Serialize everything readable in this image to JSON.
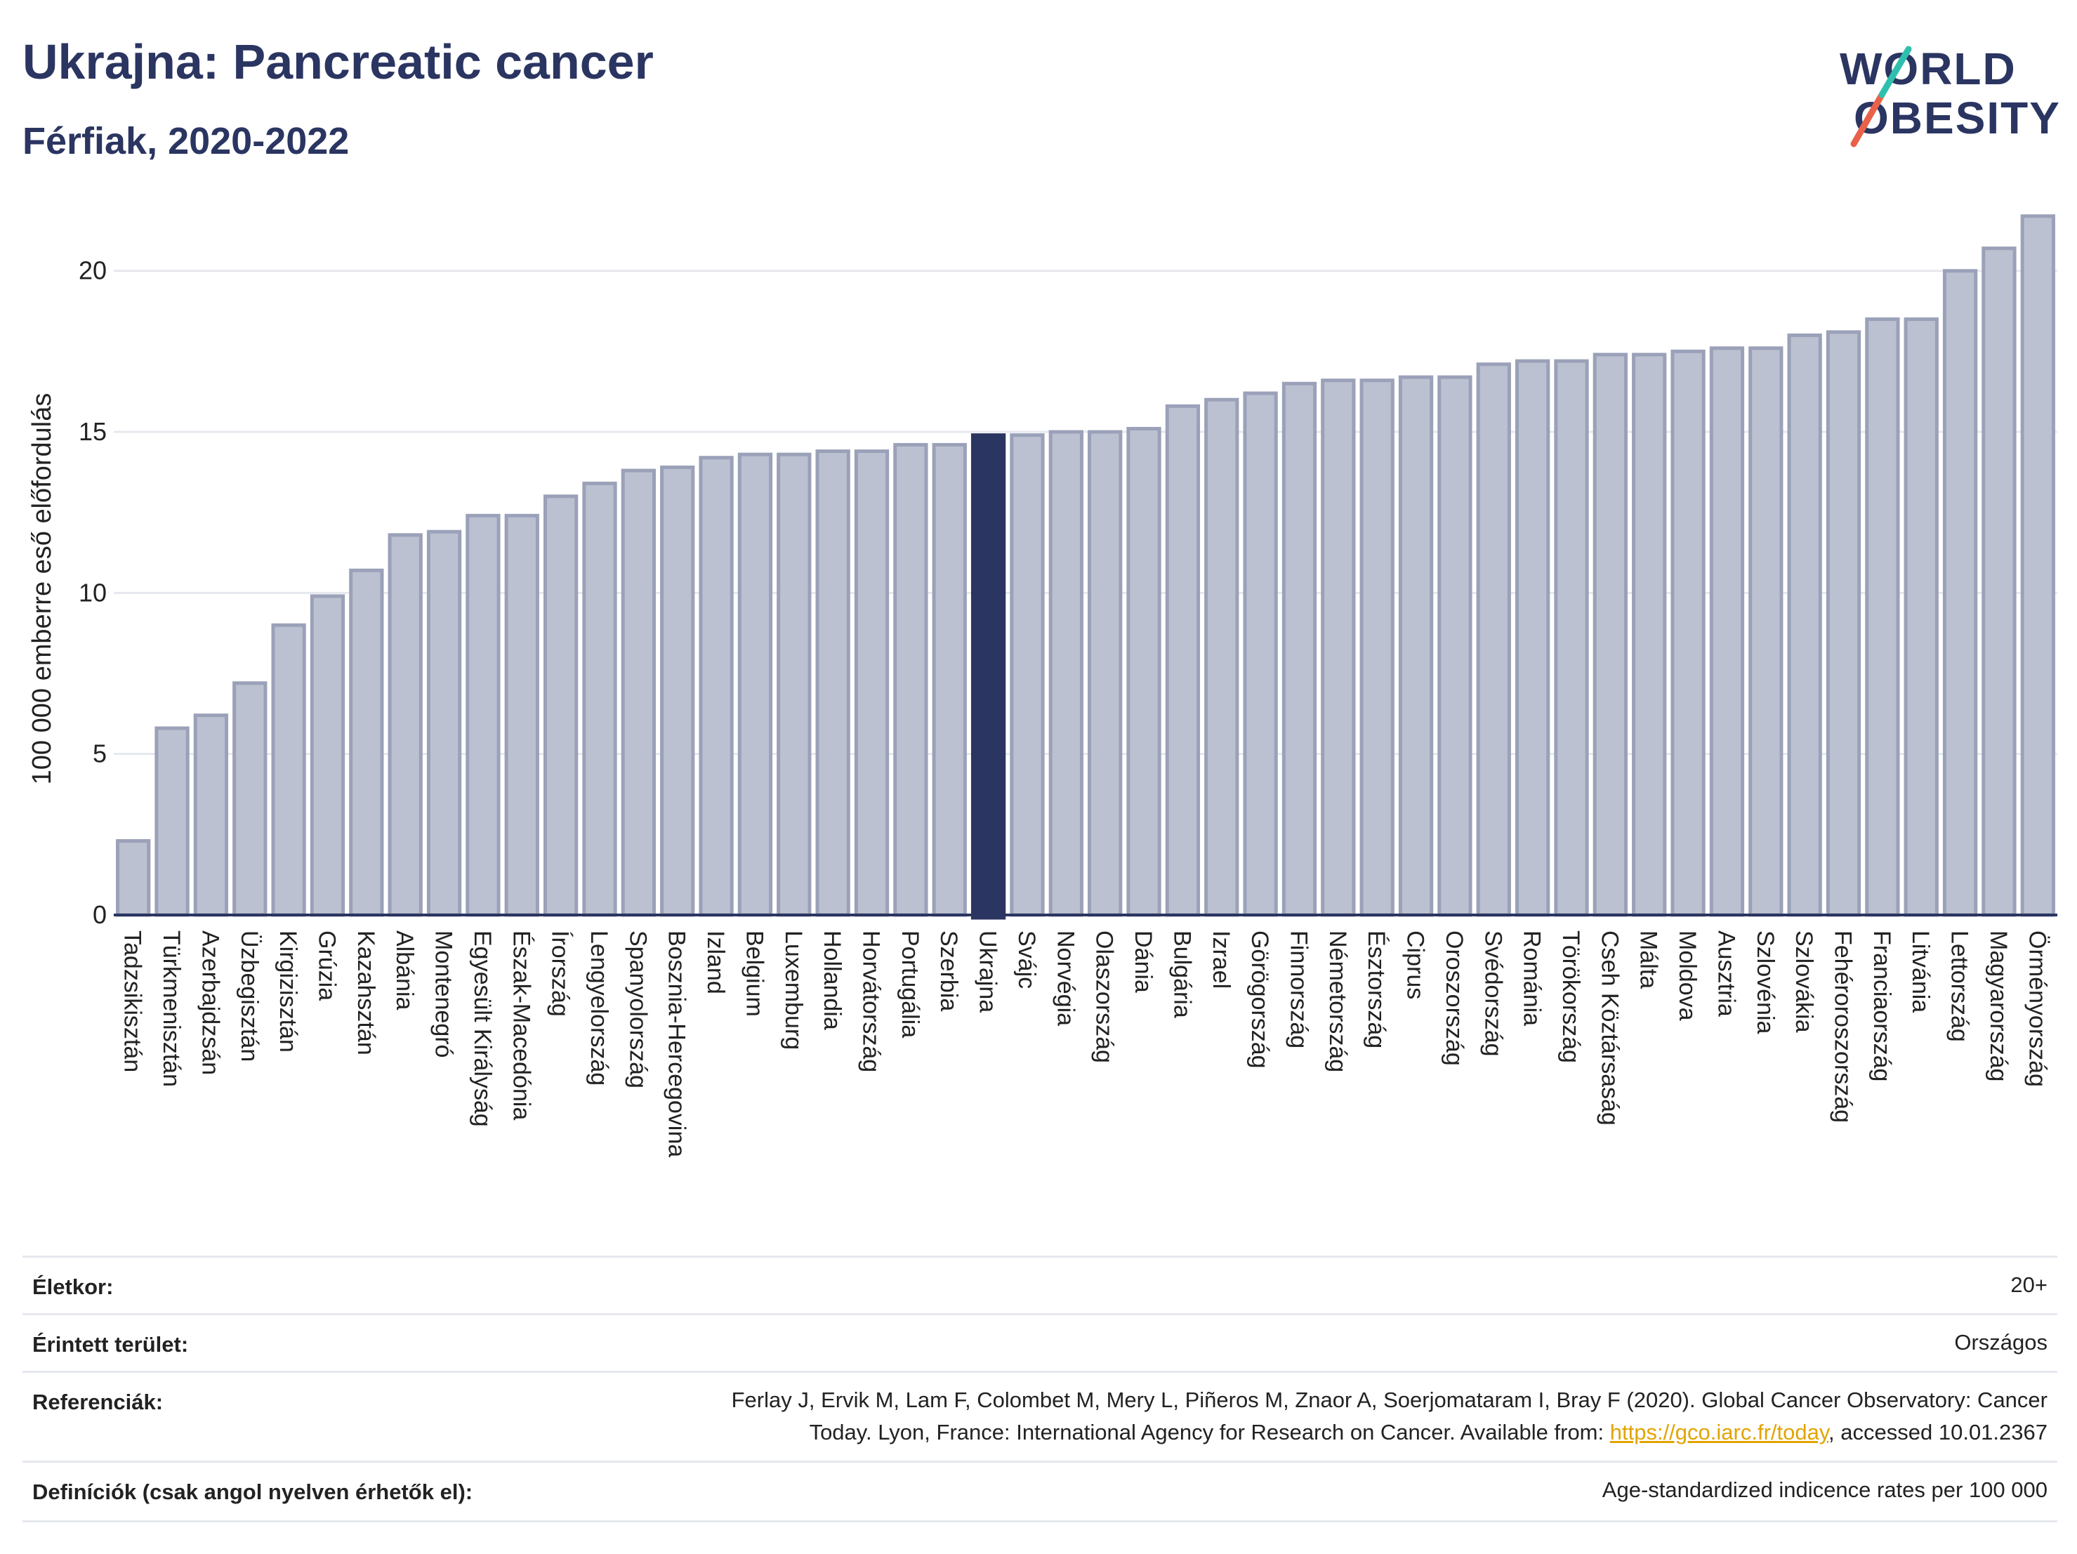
{
  "header": {
    "title": "Ukrajna: Pancreatic cancer",
    "subtitle": "Férfiak, 2020-2022"
  },
  "logo": {
    "line1": "WORLD",
    "line2": "OBESITY",
    "accent_color": "#e8624a",
    "accent_color_2": "#2fbfae"
  },
  "colors": {
    "bar": "#bcc1d1",
    "bar_edge": "#9aa1b8",
    "highlight": "#2b3561",
    "axis": "#2b3561",
    "grid": "#e6e8ef"
  },
  "chart_data": {
    "type": "bar",
    "ylabel": "100 000 emberre eső előfordulás",
    "ylim": [
      0,
      22
    ],
    "yticks": [
      0,
      5,
      10,
      15,
      20
    ],
    "grid": true,
    "highlight": "Ukrajna",
    "categories": [
      "Tadzsikisztán",
      "Türkmenisztán",
      "Azerbajdzsán",
      "Üzbegisztán",
      "Kirgizisztán",
      "Grúzia",
      "Kazahsztán",
      "Albánia",
      "Montenegró",
      "Egyesült Királyság",
      "Észak-Macedónia",
      "Írország",
      "Lengyelország",
      "Spanyolország",
      "Bosznia-Hercegovina",
      "Izland",
      "Belgium",
      "Luxemburg",
      "Hollandia",
      "Horvátország",
      "Portugália",
      "Szerbia",
      "Ukrajna",
      "Svájc",
      "Norvégia",
      "Olaszország",
      "Dánia",
      "Bulgária",
      "Izrael",
      "Görögország",
      "Finnország",
      "Németország",
      "Észtország",
      "Ciprus",
      "Oroszország",
      "Svédország",
      "Románia",
      "Törökország",
      "Cseh Köztársaság",
      "Málta",
      "Moldova",
      "Ausztria",
      "Szlovénia",
      "Szlovákia",
      "Fehéroroszország",
      "Franciaország",
      "Litvánia",
      "Lettország",
      "Magyarország",
      "Örményország"
    ],
    "values": [
      2.3,
      5.8,
      6.2,
      7.2,
      9.0,
      9.9,
      10.7,
      11.8,
      11.9,
      12.4,
      12.4,
      13.0,
      13.4,
      13.8,
      13.9,
      14.2,
      14.3,
      14.3,
      14.4,
      14.4,
      14.6,
      14.6,
      14.9,
      14.9,
      15.0,
      15.0,
      15.1,
      15.8,
      16.0,
      16.2,
      16.5,
      16.6,
      16.6,
      16.7,
      16.7,
      17.1,
      17.2,
      17.2,
      17.4,
      17.4,
      17.5,
      17.6,
      17.6,
      18.0,
      18.1,
      18.5,
      18.5,
      20.0,
      20.7,
      21.7
    ]
  },
  "info": {
    "age_label": "Életkor:",
    "age_value": "20+",
    "area_label": "Érintett terület:",
    "area_value": "Országos",
    "ref_label": "Referenciák:",
    "ref_line1": "Ferlay J, Ervik M, Lam F, Colombet M, Mery L, Piñeros M, Znaor A, Soerjomataram I, Bray F (2020). Global Cancer Observatory: Cancer",
    "ref_line2_a": "Today. Lyon, France: International Agency for Research on Cancer. Available from: ",
    "ref_link": "https://gco.iarc.fr/today",
    "ref_line2_b": ", accessed 10.01.2367",
    "def_label": "Definíciók (csak angol nyelven érhetők el):",
    "def_value": "Age-standardized indicence rates per 100 000"
  }
}
